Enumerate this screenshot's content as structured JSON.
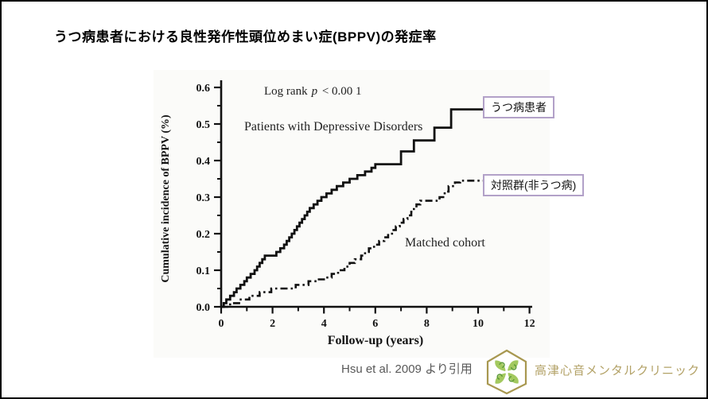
{
  "slide": {
    "title": "うつ病患者における良性発作性頭位めまい症(BPPV)の発症率",
    "citation": "Hsu et al. 2009 より引用",
    "clinic_name": "高津心音メンタルクリニック",
    "colors": {
      "annotation_border": "#b2a1c8",
      "citation_text": "#595959",
      "clinic_gold": "#b3a267",
      "logo_hex_stroke": "#a89850",
      "logo_green_light": "#a3c95f",
      "logo_green_dark": "#5c9a38",
      "chart_ink": "#111111"
    }
  },
  "annotations": {
    "depressive_label": "うつ病患者",
    "control_label": "対照群(非うつ病)"
  },
  "chart_data": {
    "type": "line",
    "subtype": "kaplan-meier-step",
    "xlabel": "Follow-up (years)",
    "ylabel": "Cumulative incidence of BPPV (%)",
    "xlim": [
      0,
      12
    ],
    "ylim": [
      0,
      0.6
    ],
    "x_ticks": [
      0,
      2,
      4,
      6,
      8,
      10,
      12
    ],
    "x_minor_ticks": [
      1,
      3,
      5,
      7,
      9,
      11
    ],
    "y_ticks": [
      0.0,
      0.1,
      0.2,
      0.3,
      0.4,
      0.5,
      0.6
    ],
    "y_minor_step": 0.05,
    "grid": false,
    "legend_position": "in-plot-labels",
    "stat_annotation": {
      "prefix": "Log rank",
      "italic": "p",
      "suffix": " < 0.00 1"
    },
    "series": [
      {
        "name": "Patients with Depressive Disorders",
        "style": "solid",
        "final_value": 0.54,
        "steps": [
          [
            0,
            0
          ],
          [
            0.1,
            0.01
          ],
          [
            0.2,
            0.02
          ],
          [
            0.35,
            0.03
          ],
          [
            0.5,
            0.04
          ],
          [
            0.6,
            0.05
          ],
          [
            0.75,
            0.06
          ],
          [
            0.9,
            0.07
          ],
          [
            1.0,
            0.08
          ],
          [
            1.15,
            0.09
          ],
          [
            1.3,
            0.1
          ],
          [
            1.4,
            0.11
          ],
          [
            1.5,
            0.12
          ],
          [
            1.6,
            0.13
          ],
          [
            1.7,
            0.14
          ],
          [
            2.15,
            0.15
          ],
          [
            2.3,
            0.16
          ],
          [
            2.45,
            0.17
          ],
          [
            2.55,
            0.18
          ],
          [
            2.65,
            0.19
          ],
          [
            2.75,
            0.2
          ],
          [
            2.85,
            0.21
          ],
          [
            2.95,
            0.22
          ],
          [
            3.05,
            0.23
          ],
          [
            3.15,
            0.24
          ],
          [
            3.25,
            0.25
          ],
          [
            3.35,
            0.26
          ],
          [
            3.45,
            0.27
          ],
          [
            3.6,
            0.28
          ],
          [
            3.75,
            0.29
          ],
          [
            3.9,
            0.3
          ],
          [
            4.1,
            0.31
          ],
          [
            4.3,
            0.32
          ],
          [
            4.5,
            0.33
          ],
          [
            4.75,
            0.34
          ],
          [
            5.0,
            0.35
          ],
          [
            5.3,
            0.36
          ],
          [
            5.6,
            0.37
          ],
          [
            5.85,
            0.38
          ],
          [
            6.0,
            0.39
          ],
          [
            7.0,
            0.425
          ],
          [
            7.5,
            0.455
          ],
          [
            8.3,
            0.49
          ],
          [
            8.95,
            0.54
          ],
          [
            10,
            0.54
          ]
        ]
      },
      {
        "name": "Matched cohort",
        "style": "dashdot",
        "final_value": 0.345,
        "steps": [
          [
            0,
            0
          ],
          [
            0.35,
            0.01
          ],
          [
            0.7,
            0.02
          ],
          [
            1.1,
            0.03
          ],
          [
            1.5,
            0.04
          ],
          [
            1.95,
            0.05
          ],
          [
            2.9,
            0.06
          ],
          [
            3.4,
            0.07
          ],
          [
            3.75,
            0.075
          ],
          [
            4.0,
            0.08
          ],
          [
            4.3,
            0.09
          ],
          [
            4.55,
            0.1
          ],
          [
            4.8,
            0.11
          ],
          [
            5.0,
            0.12
          ],
          [
            5.2,
            0.13
          ],
          [
            5.45,
            0.14
          ],
          [
            5.6,
            0.15
          ],
          [
            5.75,
            0.16
          ],
          [
            5.95,
            0.17
          ],
          [
            6.15,
            0.18
          ],
          [
            6.35,
            0.19
          ],
          [
            6.5,
            0.2
          ],
          [
            6.65,
            0.21
          ],
          [
            6.8,
            0.22
          ],
          [
            6.95,
            0.23
          ],
          [
            7.1,
            0.24
          ],
          [
            7.25,
            0.25
          ],
          [
            7.4,
            0.26
          ],
          [
            7.5,
            0.27
          ],
          [
            7.6,
            0.28
          ],
          [
            7.75,
            0.29
          ],
          [
            8.5,
            0.3
          ],
          [
            8.7,
            0.315
          ],
          [
            8.85,
            0.33
          ],
          [
            9.1,
            0.34
          ],
          [
            9.3,
            0.345
          ],
          [
            10,
            0.345
          ]
        ]
      }
    ]
  }
}
